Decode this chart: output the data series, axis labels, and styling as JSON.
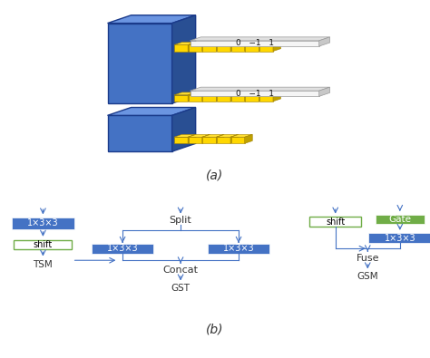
{
  "fig_width": 4.74,
  "fig_height": 3.95,
  "bg_color": "#ffffff",
  "caption_a": "(a)",
  "caption_b": "(b)",
  "blue_box_color": "#4472C4",
  "green_box_color": "#70AD47",
  "light_green_border_color": "#70AD47",
  "arrow_color": "#4472C4",
  "blue_3d_color": "#4472C4",
  "blue_3d_dark": "#2A52A0",
  "blue_3d_light": "#6090D8",
  "yellow_3d_color": "#FFD700",
  "yellow_3d_dark": "#C8A000",
  "yellow_3d_light": "#FFEE80",
  "bar_color": "#E8E8E8",
  "bar_border": "#999999",
  "kernel_label": "0   −1   1",
  "conv_label": "1×3×3",
  "tsm_label": "TSM",
  "gst_label": "GST",
  "gsm_label": "GSM",
  "split_label": "Split",
  "concat_label": "Concat",
  "fuse_label": "Fuse",
  "shift_label": "shift",
  "gate_label": "Gate"
}
